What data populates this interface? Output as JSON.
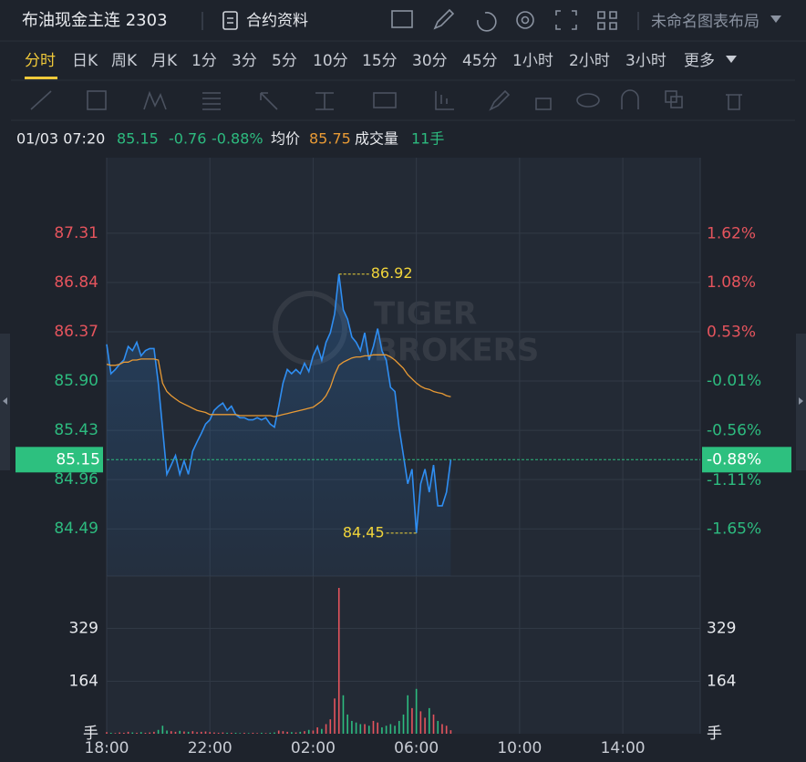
{
  "header": {
    "title": "布油现金主连 2303",
    "contract_info": "合约资料",
    "layout_name": "未命名图表布局"
  },
  "periods": [
    "分时",
    "日K",
    "周K",
    "月K",
    "1分",
    "3分",
    "5分",
    "10分",
    "15分",
    "30分",
    "45分",
    "1小时",
    "2小时",
    "3小时",
    "更多"
  ],
  "selected_period": 0,
  "info": {
    "datetime": "01/03 07:20",
    "price": 85.15,
    "change": -0.76,
    "change_pct": "-0.88%",
    "avg_label": "均价",
    "avg": 85.75,
    "volume_label": "成交量",
    "volume": "11手"
  },
  "watermark": [
    "TIGER",
    "BROKERS"
  ],
  "chart_data": {
    "type": "line",
    "x": [
      "18:00",
      "18:10",
      "18:20",
      "18:30",
      "18:40",
      "18:50",
      "19:00",
      "19:10",
      "19:20",
      "19:30",
      "19:40",
      "19:50",
      "20:00",
      "20:10",
      "20:20",
      "20:30",
      "20:40",
      "20:50",
      "21:00",
      "21:10",
      "21:20",
      "21:30",
      "21:40",
      "21:50",
      "22:00",
      "22:10",
      "22:20",
      "22:30",
      "22:40",
      "22:50",
      "23:00",
      "23:10",
      "23:20",
      "23:30",
      "23:40",
      "23:50",
      "00:00",
      "00:10",
      "00:20",
      "00:30",
      "00:40",
      "00:50",
      "01:00",
      "01:10",
      "01:20",
      "01:30",
      "01:40",
      "01:50",
      "02:00",
      "02:10",
      "02:20",
      "02:30",
      "02:40",
      "02:50",
      "03:00",
      "03:10",
      "03:20",
      "03:30",
      "03:40",
      "03:50",
      "04:00",
      "04:10",
      "04:20",
      "04:30",
      "04:40",
      "04:50",
      "05:00",
      "05:10",
      "05:20",
      "05:30",
      "05:40",
      "05:50",
      "06:00",
      "06:10",
      "06:20",
      "06:30",
      "06:40",
      "06:50",
      "07:00",
      "07:10",
      "07:20"
    ],
    "xlim": [
      "18:00",
      "17:00"
    ],
    "xticks": [
      "18:00",
      "22:00",
      "02:00",
      "06:00",
      "10:00",
      "14:00"
    ],
    "series": [
      {
        "color": "#2f8ef2",
        "values": [
          86.25,
          85.97,
          86.01,
          86.06,
          86.1,
          86.23,
          86.19,
          86.27,
          86.14,
          86.19,
          86.21,
          86.21,
          85.88,
          85.45,
          85.01,
          85.1,
          85.19,
          85.01,
          85.14,
          85.01,
          85.23,
          85.32,
          85.4,
          85.49,
          85.53,
          85.62,
          85.66,
          85.69,
          85.62,
          85.66,
          85.58,
          85.55,
          85.55,
          85.53,
          85.53,
          85.55,
          85.53,
          85.55,
          85.49,
          85.46,
          85.66,
          85.88,
          86.01,
          85.97,
          86.01,
          85.97,
          86.07,
          85.99,
          86.14,
          86.23,
          86.1,
          86.27,
          86.36,
          86.54,
          86.92,
          86.58,
          86.49,
          86.32,
          86.27,
          86.19,
          86.36,
          86.1,
          86.23,
          86.4,
          86.19,
          86.1,
          85.84,
          85.8,
          85.45,
          85.19,
          84.92,
          85.06,
          84.45,
          84.92,
          85.06,
          84.84,
          85.1,
          84.71,
          84.71,
          84.84,
          85.15
        ]
      },
      {
        "color": "#e89a35",
        "values": [
          86.06,
          86.05,
          86.05,
          86.06,
          86.08,
          86.08,
          86.1,
          86.1,
          86.11,
          86.11,
          86.11,
          86.11,
          86.1,
          85.88,
          85.8,
          85.76,
          85.73,
          85.7,
          85.68,
          85.66,
          85.64,
          85.62,
          85.61,
          85.6,
          85.58,
          85.58,
          85.58,
          85.58,
          85.58,
          85.58,
          85.58,
          85.57,
          85.57,
          85.57,
          85.57,
          85.57,
          85.57,
          85.57,
          85.57,
          85.56,
          85.57,
          85.58,
          85.59,
          85.6,
          85.61,
          85.62,
          85.63,
          85.64,
          85.65,
          85.68,
          85.71,
          85.76,
          85.84,
          85.96,
          86.05,
          86.08,
          86.1,
          86.12,
          86.13,
          86.13,
          86.14,
          86.14,
          86.15,
          86.15,
          86.15,
          86.15,
          86.13,
          86.1,
          86.06,
          86.02,
          85.96,
          85.92,
          85.88,
          85.85,
          85.83,
          85.82,
          85.8,
          85.79,
          85.78,
          85.76,
          85.75
        ]
      }
    ],
    "ylim": [
      84.04,
      88.03
    ],
    "yticks": [
      87.31,
      86.84,
      86.37,
      {
        "value": 85.9,
        "label": "85.90"
      },
      85.43,
      84.96,
      84.49
    ],
    "y2lim": [
      -2.17,
      2.46
    ],
    "y2ticks": [
      {
        "value": 1.62,
        "label": "1.62%"
      },
      {
        "value": 1.08,
        "label": "1.08%"
      },
      {
        "value": 0.53,
        "label": "0.53%"
      },
      {
        "value": -0.01,
        "label": "-0.01%"
      },
      {
        "value": -0.56,
        "label": "-0.56%"
      },
      {
        "value": -1.11,
        "label": "-1.11%"
      },
      {
        "value": -1.65,
        "label": "-1.65%"
      }
    ],
    "grid": true,
    "up_color": "#e5545d",
    "down_color": "#2dbb7f",
    "volume": {
      "type": "bar",
      "values": [
        5,
        3,
        2,
        4,
        3,
        6,
        4,
        3,
        5,
        3,
        4,
        6,
        12,
        25,
        10,
        8,
        6,
        9,
        7,
        6,
        8,
        5,
        6,
        7,
        5,
        4,
        3,
        4,
        3,
        3,
        3,
        2,
        3,
        2,
        3,
        2,
        3,
        2,
        3,
        4,
        10,
        8,
        6,
        5,
        4,
        6,
        8,
        12,
        10,
        20,
        15,
        30,
        45,
        110,
        455,
        120,
        60,
        40,
        35,
        30,
        30,
        25,
        40,
        35,
        20,
        25,
        30,
        25,
        40,
        60,
        120,
        80,
        140,
        70,
        50,
        80,
        60,
        40,
        30,
        25,
        11
      ],
      "ylim": [
        0,
        492
      ],
      "yticks": [
        {
          "value": 0,
          "label": "手"
        },
        164,
        329
      ]
    }
  }
}
